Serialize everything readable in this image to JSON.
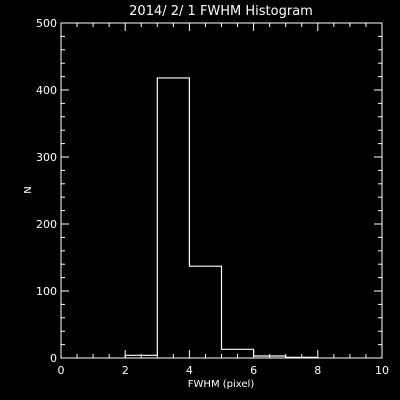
{
  "chart_data": {
    "type": "bar",
    "title": "2014/ 2/ 1 FWHM Histogram",
    "xlabel": "FWHM (pixel)",
    "ylabel": "N",
    "xlim": [
      0,
      10
    ],
    "ylim": [
      0,
      500
    ],
    "bin_width": 1,
    "bin_edges": [
      2,
      3,
      4,
      5,
      6,
      7,
      8
    ],
    "values": [
      4,
      418,
      137,
      13,
      3,
      1
    ],
    "x_ticks": [
      0,
      2,
      4,
      6,
      8,
      10
    ],
    "x_tick_labels": [
      "0",
      "2",
      "4",
      "6",
      "8",
      "10"
    ],
    "y_ticks": [
      0,
      100,
      200,
      300,
      400,
      500
    ],
    "y_tick_labels": [
      "0",
      "100",
      "200",
      "300",
      "400",
      "500"
    ],
    "grid": false,
    "legend": "none",
    "colors": {
      "background": "#000000",
      "foreground": "#ffffff"
    }
  }
}
